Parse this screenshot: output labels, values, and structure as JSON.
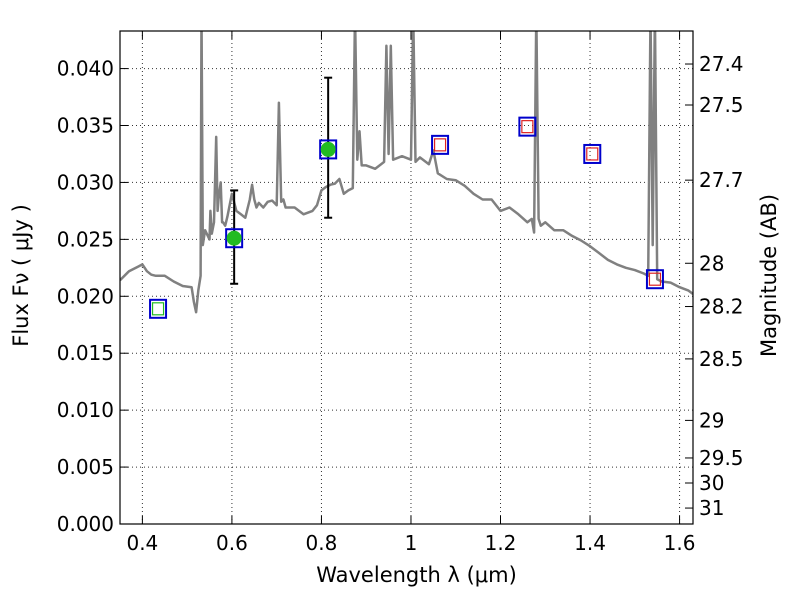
{
  "chart_data": {
    "type": "line",
    "xlabel": "Wavelength  λ (μm)",
    "ylabel": "Flux  Fν  ( μJy )",
    "y2label": "Magnitude (AB)",
    "xlim": [
      0.35,
      1.63
    ],
    "ylim": [
      0.0,
      0.0433
    ],
    "grid": true,
    "x_ticks": [
      0.4,
      0.6,
      0.8,
      1.0,
      1.2,
      1.4,
      1.6
    ],
    "x_tick_labels": [
      "0.4",
      "0.6",
      "0.8",
      "1",
      "1.2",
      "1.4",
      "1.6"
    ],
    "y_ticks": [
      0.0,
      0.005,
      0.01,
      0.015,
      0.02,
      0.025,
      0.03,
      0.035,
      0.04
    ],
    "y_tick_labels": [
      "0.000",
      "0.005",
      "0.010",
      "0.015",
      "0.020",
      "0.025",
      "0.030",
      "0.035",
      "0.040"
    ],
    "mag_ticks": [
      {
        "label": "27.4",
        "flux": 0.0404
      },
      {
        "label": "27.5",
        "flux": 0.0368
      },
      {
        "label": "27.7",
        "flux": 0.0302
      },
      {
        "label": "28",
        "flux": 0.0229
      },
      {
        "label": "28.2",
        "flux": 0.0191
      },
      {
        "label": "28.5",
        "flux": 0.0145
      },
      {
        "label": "29",
        "flux": 0.0091
      },
      {
        "label": "29.5",
        "flux": 0.0058
      },
      {
        "label": "30",
        "flux": 0.0036
      },
      {
        "label": "31",
        "flux": 0.0014
      }
    ],
    "series": [
      {
        "kind": "spectrum",
        "color": "#808080",
        "x": [
          0.35,
          0.37,
          0.39,
          0.4,
          0.41,
          0.42,
          0.43,
          0.45,
          0.47,
          0.49,
          0.51,
          0.515,
          0.52,
          0.525,
          0.53,
          0.532,
          0.535,
          0.54,
          0.55,
          0.552,
          0.555,
          0.56,
          0.565,
          0.568,
          0.57,
          0.575,
          0.578,
          0.58,
          0.585,
          0.59,
          0.6,
          0.61,
          0.62,
          0.63,
          0.64,
          0.645,
          0.65,
          0.655,
          0.66,
          0.67,
          0.68,
          0.69,
          0.7,
          0.705,
          0.71,
          0.715,
          0.72,
          0.74,
          0.76,
          0.78,
          0.79,
          0.8,
          0.81,
          0.82,
          0.83,
          0.84,
          0.85,
          0.86,
          0.87,
          0.875,
          0.88,
          0.885,
          0.89,
          0.9,
          0.92,
          0.94,
          0.945,
          0.95,
          0.955,
          0.96,
          0.98,
          1.0,
          1.005,
          1.01,
          1.02,
          1.04,
          1.05,
          1.06,
          1.08,
          1.1,
          1.12,
          1.14,
          1.16,
          1.18,
          1.2,
          1.22,
          1.24,
          1.26,
          1.27,
          1.275,
          1.28,
          1.285,
          1.29,
          1.3,
          1.32,
          1.34,
          1.36,
          1.38,
          1.4,
          1.42,
          1.44,
          1.46,
          1.48,
          1.5,
          1.52,
          1.53,
          1.535,
          1.54,
          1.545,
          1.55,
          1.56,
          1.58,
          1.6,
          1.62,
          1.63
        ],
        "y": [
          0.0214,
          0.0222,
          0.0226,
          0.0228,
          0.0222,
          0.0219,
          0.0218,
          0.0218,
          0.0213,
          0.0209,
          0.0208,
          0.0195,
          0.0186,
          0.0205,
          0.0218,
          0.045,
          0.0245,
          0.0258,
          0.025,
          0.0275,
          0.0255,
          0.0265,
          0.034,
          0.0275,
          0.0285,
          0.03,
          0.0265,
          0.0265,
          0.0262,
          0.027,
          0.029,
          0.0275,
          0.0272,
          0.0269,
          0.0285,
          0.0298,
          0.0285,
          0.0278,
          0.0282,
          0.0278,
          0.0283,
          0.0284,
          0.028,
          0.037,
          0.0283,
          0.0285,
          0.0278,
          0.0278,
          0.0272,
          0.0275,
          0.028,
          0.0293,
          0.0296,
          0.0298,
          0.0299,
          0.0303,
          0.029,
          0.0293,
          0.0295,
          0.045,
          0.032,
          0.0345,
          0.0315,
          0.0315,
          0.0312,
          0.0318,
          0.042,
          0.0325,
          0.042,
          0.032,
          0.0323,
          0.032,
          0.045,
          0.0318,
          0.0322,
          0.0316,
          0.0328,
          0.0308,
          0.0303,
          0.0302,
          0.0297,
          0.029,
          0.0285,
          0.0285,
          0.0275,
          0.0278,
          0.0272,
          0.0265,
          0.0268,
          0.0256,
          0.045,
          0.0268,
          0.0262,
          0.0265,
          0.0258,
          0.0258,
          0.0253,
          0.0249,
          0.0244,
          0.0238,
          0.0232,
          0.0228,
          0.0225,
          0.0223,
          0.022,
          0.0218,
          0.045,
          0.0245,
          0.045,
          0.0215,
          0.0213,
          0.0212,
          0.0208,
          0.0205,
          0.0202
        ]
      },
      {
        "kind": "model-photometry",
        "marker": "open-square",
        "color": "#0000cc",
        "x": [
          0.435,
          0.605,
          0.815,
          1.065,
          1.26,
          1.405,
          1.545
        ],
        "y": [
          0.0189,
          0.0251,
          0.0329,
          0.0333,
          0.0349,
          0.0325,
          0.0215
        ]
      },
      {
        "kind": "observed",
        "marker": "filled-circle",
        "color": "#22bb22",
        "errorbar_color": "#000000",
        "x": [
          0.605,
          0.815
        ],
        "y": [
          0.0251,
          0.0329
        ],
        "yerr_low": [
          0.004,
          0.006
        ],
        "yerr_high": [
          0.0042,
          0.0063
        ]
      },
      {
        "kind": "upper-limit",
        "marker": "small-open-square",
        "colors": [
          "#22bb22",
          "#dd2222",
          "#dd2222",
          "#dd2222",
          "#dd2222"
        ],
        "x": [
          0.435,
          1.065,
          1.26,
          1.405,
          1.545
        ],
        "y": [
          0.0189,
          0.0333,
          0.0349,
          0.0325,
          0.0215
        ]
      }
    ]
  }
}
